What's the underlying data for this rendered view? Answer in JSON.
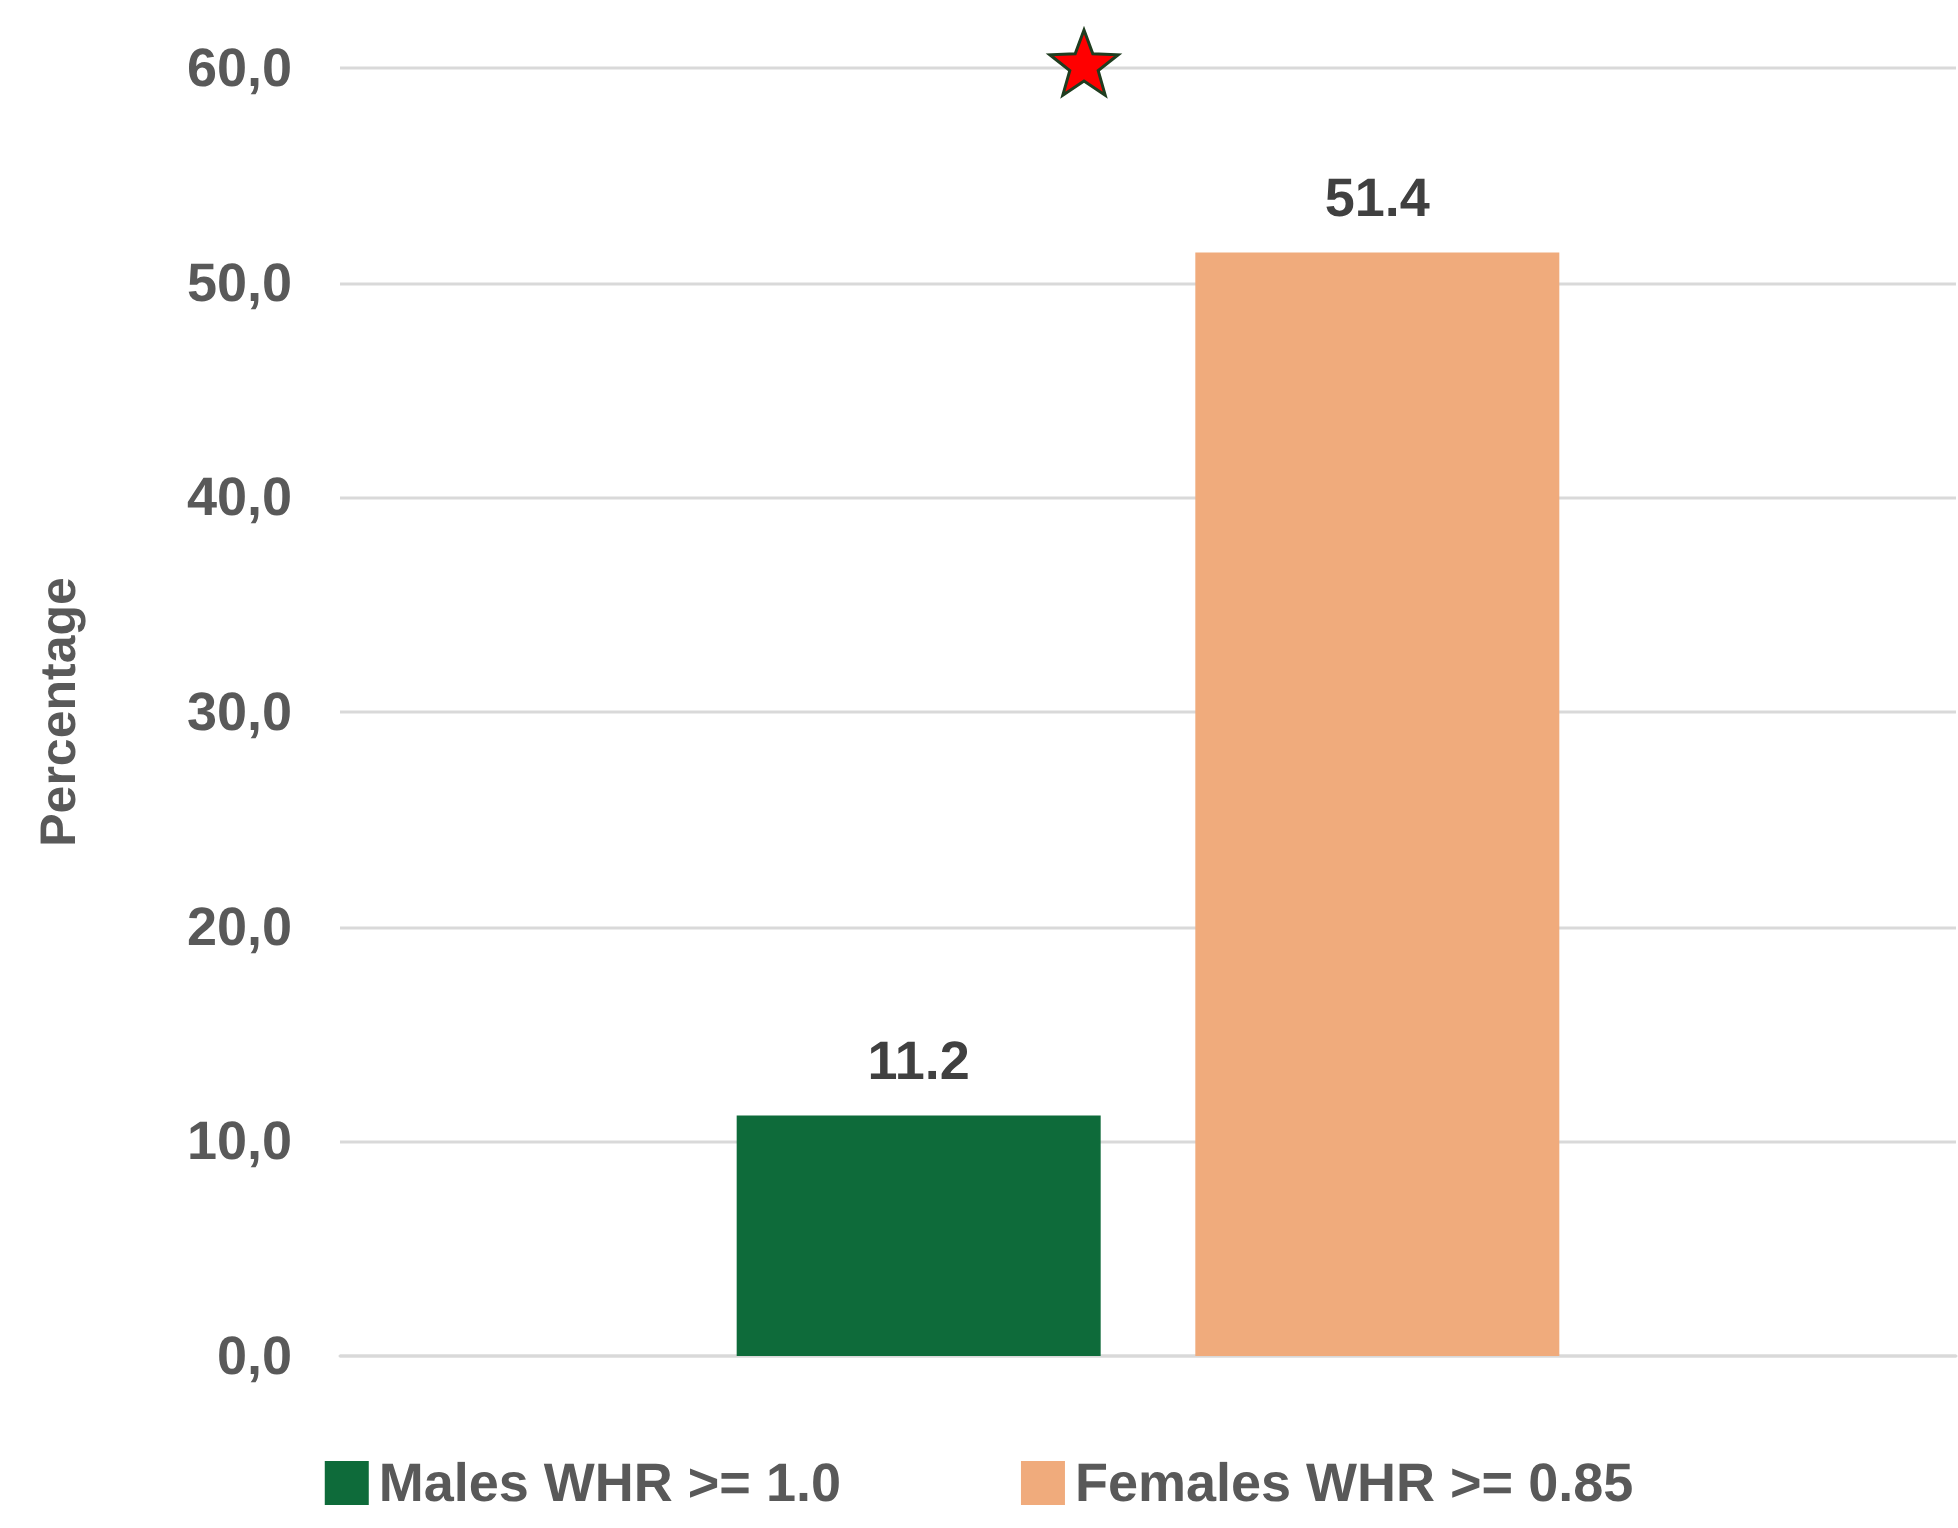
{
  "chart_data": {
    "type": "bar",
    "ylabel": "Percentage",
    "categories": [
      null
    ],
    "series": [
      {
        "name": "Males WHR >= 1.0",
        "color": "#0e6b3a",
        "values": [
          11.2
        ]
      },
      {
        "name": "Females WHR >= 0.85",
        "color": "#f0ab7c",
        "values": [
          51.4
        ]
      }
    ],
    "ylim": [
      0,
      60
    ],
    "yticks": [
      {
        "value": 0,
        "label": "0,0"
      },
      {
        "value": 10,
        "label": "10,0"
      },
      {
        "value": 20,
        "label": "20,0"
      },
      {
        "value": 30,
        "label": "30,0"
      },
      {
        "value": 40,
        "label": "40,0"
      },
      {
        "value": 50,
        "label": "50,0"
      },
      {
        "value": 60,
        "label": "60,0"
      }
    ],
    "grid": "y",
    "legend": "bottom",
    "data_labels": true
  }
}
